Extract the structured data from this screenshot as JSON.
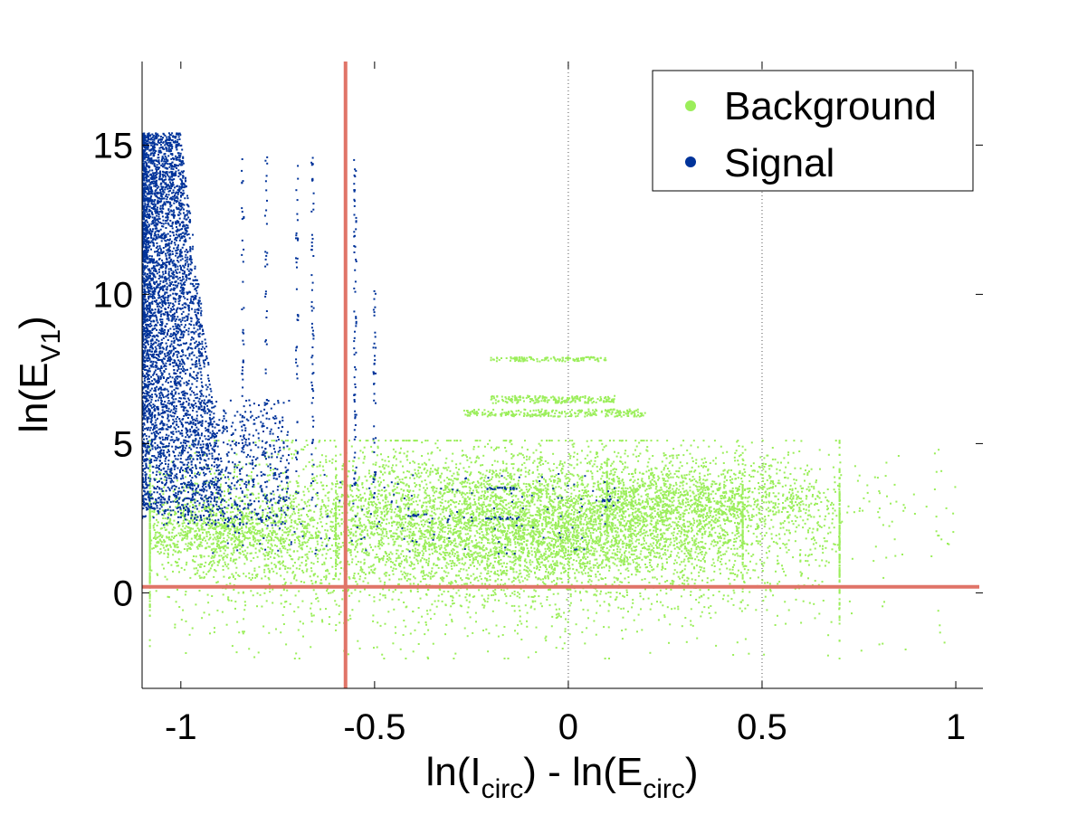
{
  "chart_data": {
    "type": "scatter",
    "title": "",
    "xlabel": {
      "prefix": "ln(I",
      "sub1": "circ",
      "middle": ") - ln(E",
      "sub2": "circ",
      "suffix": ")"
    },
    "ylabel": {
      "prefix": "ln(E",
      "sub": "V1",
      "suffix": ")"
    },
    "xlim": [
      -1.1,
      1.07
    ],
    "ylim": [
      -3.2,
      17.8
    ],
    "xticks": [
      -1,
      -0.5,
      0,
      0.5,
      1
    ],
    "xtick_labels": [
      "-1",
      "-0.5",
      "0",
      "0.5",
      "1"
    ],
    "yticks": [
      0,
      5,
      10,
      15
    ],
    "ytick_labels": [
      "0",
      "5",
      "10",
      "15"
    ],
    "vertical_gridlines": [
      0,
      0.5
    ],
    "cut_lines": {
      "vertical_x": -0.575,
      "horizontal_y": 0.2,
      "color": "#e07468"
    },
    "legend": {
      "position": "top-right"
    },
    "series": [
      {
        "name": "Background",
        "color": "#9bee5a",
        "regions": [
          {
            "kind": "blob",
            "cx": -0.2,
            "cy": 2.1,
            "sx": 0.48,
            "sy": 1.45,
            "xmin": -1.08,
            "xmax": 0.7,
            "ymin": -2.2,
            "ymax": 5.1,
            "n": 5200
          },
          {
            "kind": "blob",
            "cx": -0.05,
            "cy": 2.3,
            "sx": 0.28,
            "sy": 1.0,
            "xmin": -0.6,
            "xmax": 0.45,
            "ymin": -1.0,
            "ymax": 4.9,
            "n": 2500
          },
          {
            "kind": "blob",
            "cx": 0.35,
            "cy": 3.1,
            "sx": 0.2,
            "sy": 0.6,
            "xmin": 0.1,
            "xmax": 0.95,
            "ymin": 1.2,
            "ymax": 4.6,
            "n": 900
          },
          {
            "kind": "blob",
            "cx": -0.9,
            "cy": 2.0,
            "sx": 0.12,
            "sy": 0.6,
            "xmin": -1.08,
            "xmax": -0.6,
            "ymin": 0.5,
            "ymax": 3.4,
            "n": 900
          },
          {
            "kind": "band",
            "xmin": -0.27,
            "xmax": 0.2,
            "ymin": 5.9,
            "ymax": 6.15,
            "n": 260
          },
          {
            "kind": "band",
            "xmin": -0.2,
            "xmax": 0.12,
            "ymin": 6.35,
            "ymax": 6.6,
            "n": 200
          },
          {
            "kind": "band",
            "xmin": -0.2,
            "xmax": 0.1,
            "ymin": 7.75,
            "ymax": 7.9,
            "n": 120
          },
          {
            "kind": "sparse",
            "xmin": -1.05,
            "xmax": 1.0,
            "ymin": -2.1,
            "ymax": 4.8,
            "n": 300
          }
        ]
      },
      {
        "name": "Signal",
        "color": "#00339a",
        "regions": [
          {
            "kind": "wedge",
            "x0": -1.1,
            "x1": -0.88,
            "ymin": 2.5,
            "ymax": 15.4,
            "n": 4200
          },
          {
            "kind": "spread",
            "xmin": -1.05,
            "xmax": -0.72,
            "ymin": 2.2,
            "ymax": 6.5,
            "n": 700
          },
          {
            "kind": "sparse",
            "xmin": -0.95,
            "xmax": 0.12,
            "ymin": 1.3,
            "ymax": 4.0,
            "n": 160
          },
          {
            "kind": "column",
            "x": -0.66,
            "ymin": 3.0,
            "ymax": 14.6,
            "n": 60
          },
          {
            "kind": "column",
            "x": -0.7,
            "ymin": 3.0,
            "ymax": 14.6,
            "n": 40
          },
          {
            "kind": "column",
            "x": -0.78,
            "ymin": 3.0,
            "ymax": 14.6,
            "n": 40
          },
          {
            "kind": "column",
            "x": -0.84,
            "ymin": 3.0,
            "ymax": 14.6,
            "n": 40
          },
          {
            "kind": "column",
            "x": -0.55,
            "ymin": 3.5,
            "ymax": 14.8,
            "n": 70
          },
          {
            "kind": "column",
            "x": -0.5,
            "ymin": 3.0,
            "ymax": 10.2,
            "n": 40
          },
          {
            "kind": "hseg",
            "x0": -0.22,
            "x1": -0.14,
            "y": 3.5,
            "n": 20
          },
          {
            "kind": "hseg",
            "x0": -0.22,
            "x1": -0.12,
            "y": 2.5,
            "n": 20
          },
          {
            "kind": "hseg",
            "x0": -0.42,
            "x1": -0.36,
            "y": 2.6,
            "n": 12
          },
          {
            "kind": "hseg",
            "x0": 0.06,
            "x1": 0.13,
            "y": 3.1,
            "n": 12
          }
        ]
      }
    ]
  }
}
